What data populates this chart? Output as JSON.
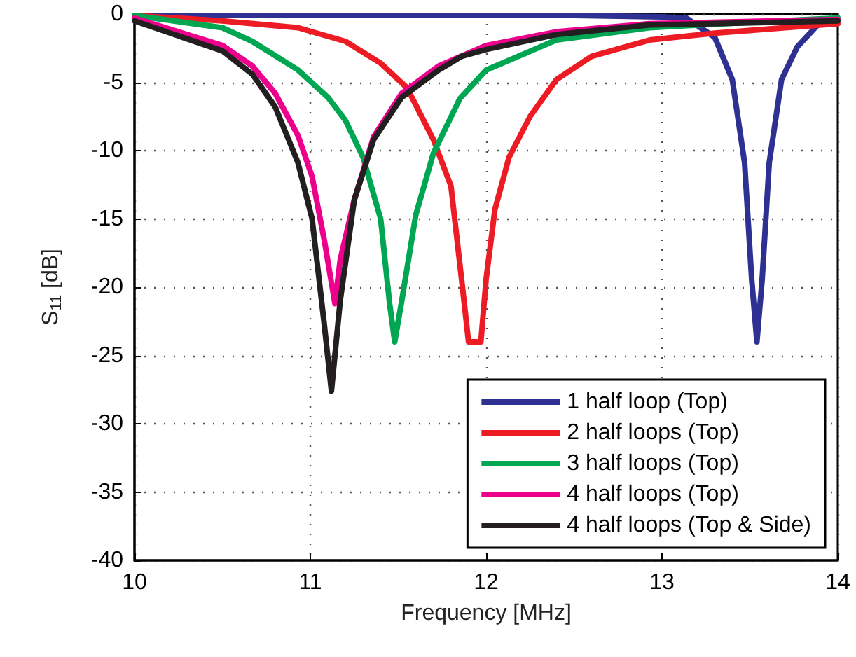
{
  "chart_data": {
    "type": "line",
    "xlabel": "Frequency [MHz]",
    "ylabel": "S$_{11}$ [dB]",
    "xlim": [
      10,
      14
    ],
    "ylim": [
      -40,
      0
    ],
    "xticks": [
      10,
      11,
      12,
      13,
      14
    ],
    "yticks": [
      -40,
      -35,
      -30,
      -25,
      -20,
      -15,
      -10,
      -5,
      0
    ],
    "grid": true,
    "legend": "bottom right",
    "marker": "none",
    "line_style": "solid",
    "series": [
      {
        "name": "1 half loop (Top)",
        "color": "#2e3192",
        "x": [
          10,
          11,
          12,
          12.5,
          13,
          13.14,
          13.3,
          13.4,
          13.47,
          13.51,
          13.54,
          13.57,
          13.61,
          13.68,
          13.77,
          13.9,
          14
        ],
        "values": [
          -0.1,
          -0.1,
          -0.1,
          -0.1,
          -0.2,
          -0.3,
          -1.7,
          -4.8,
          -10.9,
          -19.4,
          -24,
          -19.4,
          -10.9,
          -4.8,
          -2.4,
          -0.6,
          -0.3
        ]
      },
      {
        "name": "2 half loops (Top)",
        "color": "#ed1c24",
        "x": [
          10,
          10.5,
          10.93,
          11.2,
          11.4,
          11.55,
          11.7,
          11.8,
          11.86,
          11.9,
          11.97,
          12,
          12.05,
          12.13,
          12.25,
          12.4,
          12.6,
          12.93,
          13.3,
          14
        ],
        "values": [
          -0.1,
          -0.5,
          -1,
          -2,
          -3.6,
          -5.4,
          -9.2,
          -12.6,
          -19.4,
          -24,
          -24,
          -19.4,
          -14.3,
          -10.5,
          -7.5,
          -4.8,
          -3.1,
          -1.9,
          -1.4,
          -0.7
        ]
      },
      {
        "name": "3 half loops (Top)",
        "color": "#00a651",
        "x": [
          10,
          10.5,
          10.67,
          10.93,
          11.1,
          11.2,
          11.3,
          11.4,
          11.45,
          11.48,
          11.52,
          11.6,
          11.7,
          11.85,
          12,
          12.4,
          12.93,
          13.5,
          14
        ],
        "values": [
          -0.1,
          -1,
          -2,
          -4.1,
          -6.1,
          -7.8,
          -10.5,
          -15,
          -21.1,
          -24,
          -21,
          -14.7,
          -10.2,
          -6.2,
          -4.1,
          -1.9,
          -1,
          -0.6,
          -0.3
        ]
      },
      {
        "name": "4 half loops (Top)",
        "color": "#ec008c",
        "x": [
          10,
          10.5,
          10.67,
          10.8,
          10.93,
          11.01,
          11.08,
          11.14,
          11.17,
          11.25,
          11.36,
          11.52,
          11.73,
          12,
          12.4,
          12.93,
          14
        ],
        "values": [
          -0.3,
          -2.3,
          -3.8,
          -5.8,
          -8.9,
          -11.9,
          -16.6,
          -21.2,
          -18,
          -13.6,
          -9,
          -5.8,
          -3.8,
          -2.3,
          -1.3,
          -0.7,
          -0.4
        ]
      },
      {
        "name": "4 half loops (Top & Side)",
        "color": "#231f20",
        "x": [
          10,
          10.5,
          10.67,
          10.8,
          10.93,
          11.01,
          11.08,
          11.12,
          11.17,
          11.25,
          11.36,
          11.52,
          11.73,
          11.86,
          12,
          12.4,
          12.93,
          14
        ],
        "values": [
          -0.5,
          -2.7,
          -4.4,
          -6.8,
          -10.9,
          -15,
          -22.8,
          -27.6,
          -21,
          -13.6,
          -9.2,
          -6.1,
          -4.1,
          -3.1,
          -2.6,
          -1.5,
          -0.8,
          -0.5
        ]
      }
    ]
  }
}
